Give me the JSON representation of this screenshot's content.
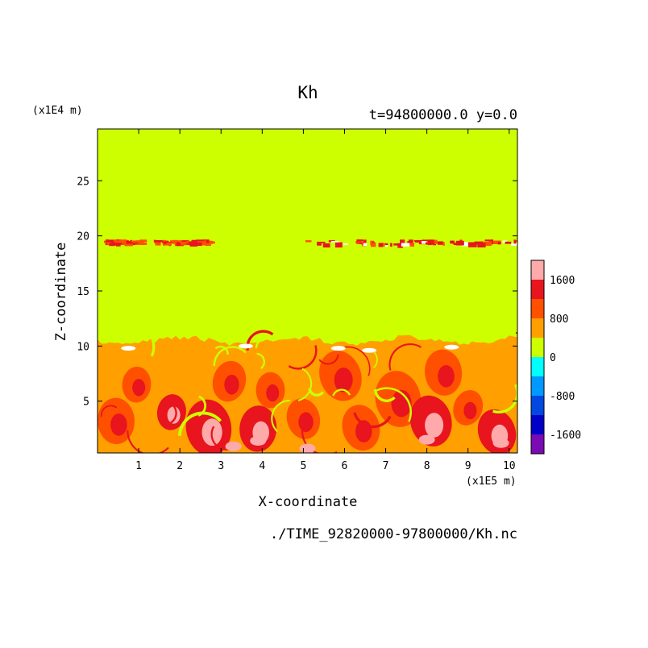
{
  "chart_data": {
    "type": "heatmap",
    "title": "Kh",
    "subtitle": "t=94800000.0 y=0.0",
    "xlabel": "X-coordinate",
    "ylabel": "Z-coordinate",
    "x_unit": "(x1E5 m)",
    "y_unit": "(x1E4 m)",
    "source": "./TIME_92820000-97800000/Kh.nc",
    "xlim": [
      0,
      10.2
    ],
    "ylim": [
      0.3,
      29.7
    ],
    "x_ticks": [
      "1",
      "2",
      "3",
      "4",
      "5",
      "6",
      "7",
      "8",
      "9",
      "10"
    ],
    "y_ticks": [
      "5",
      "10",
      "15",
      "20",
      "25"
    ],
    "colorbar": {
      "labels": [
        "1600",
        "800",
        "0",
        "-800",
        "-1600"
      ],
      "levels": [
        2000,
        1600,
        1200,
        800,
        400,
        0,
        -400,
        -800,
        -1200,
        -1600,
        -2000
      ],
      "colors": [
        "#ffaaaa",
        "#e8141e",
        "#ff5000",
        "#ff9f00",
        "#cdff00",
        "#00ffff",
        "#0099ff",
        "#0048e0",
        "#0000c8",
        "#7a0ab4"
      ]
    },
    "field_colors": {
      "background": "#cdff00",
      "low": "#ff9f00",
      "mid": "#ff5000",
      "high": "#e8141e",
      "peak": "#ffaaaa",
      "max": "#ffffff"
    },
    "upper_band_z": 19.2,
    "lower_region_top_z": 10.5
  }
}
